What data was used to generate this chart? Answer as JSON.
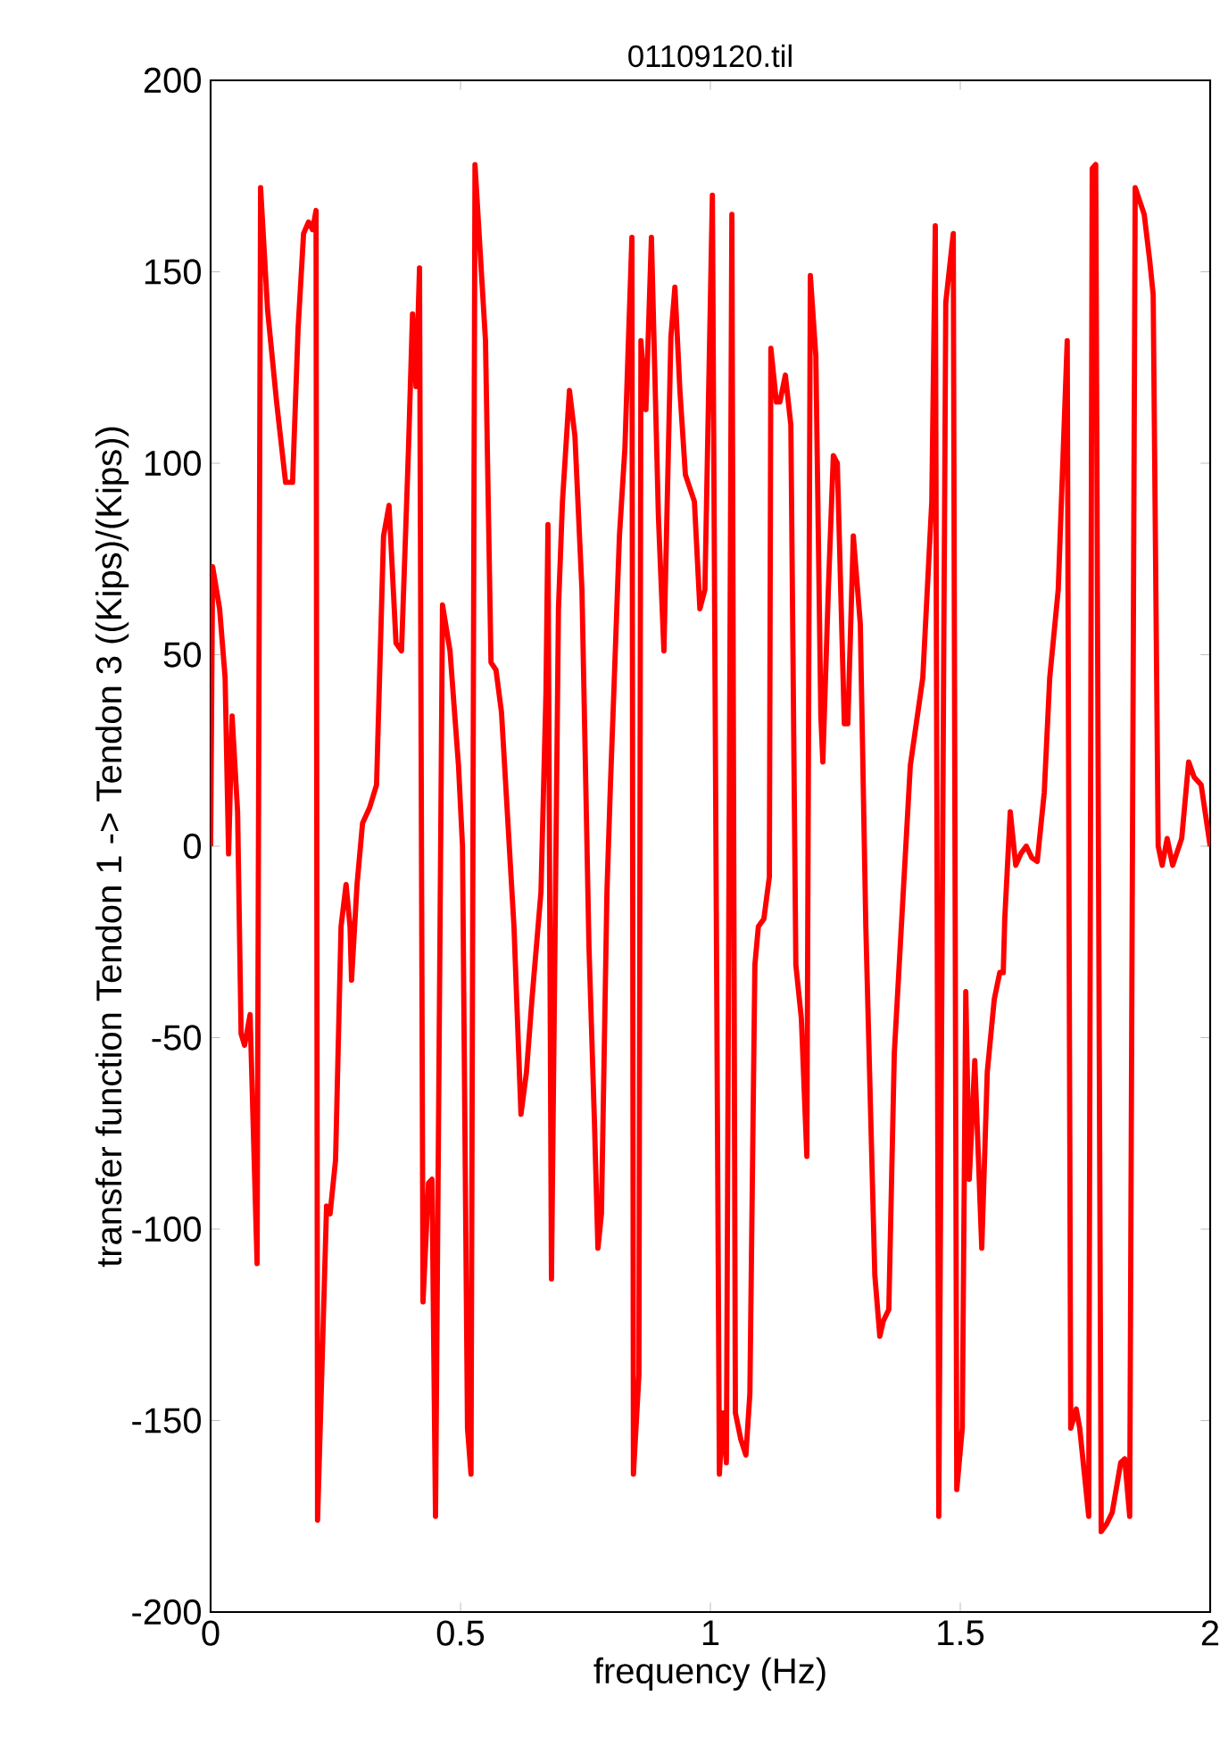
{
  "chart_data": {
    "type": "line",
    "title": "01109120.til",
    "xlabel": "frequency (Hz)",
    "ylabel": "transfer function Tendon 1 -> Tendon 3 ((Kips)/(Kips))",
    "xlim": [
      0,
      2
    ],
    "ylim": [
      -200,
      200
    ],
    "xticks": [
      0,
      0.5,
      1,
      1.5,
      2
    ],
    "yticks": [
      -200,
      -150,
      -100,
      -50,
      0,
      50,
      100,
      150,
      200
    ],
    "grid": false,
    "marker": "none",
    "line_style": "solid",
    "series": [
      {
        "color": "#ff0000",
        "x": [
          0,
          0.004,
          0.018,
          0.029,
          0.036,
          0.043,
          0.054,
          0.061,
          0.068,
          0.079,
          0.093,
          0.1,
          0.114,
          0.132,
          0.15,
          0.164,
          0.175,
          0.186,
          0.196,
          0.204,
          0.211,
          0.214,
          0.232,
          0.239,
          0.25,
          0.261,
          0.271,
          0.279,
          0.282,
          0.293,
          0.304,
          0.318,
          0.332,
          0.346,
          0.357,
          0.371,
          0.382,
          0.396,
          0.404,
          0.411,
          0.418,
          0.425,
          0.436,
          0.443,
          0.45,
          0.464,
          0.479,
          0.496,
          0.504,
          0.514,
          0.521,
          0.529,
          0.539,
          0.55,
          0.561,
          0.571,
          0.582,
          0.607,
          0.621,
          0.632,
          0.643,
          0.661,
          0.671,
          0.675,
          0.682,
          0.696,
          0.704,
          0.718,
          0.729,
          0.743,
          0.757,
          0.768,
          0.775,
          0.782,
          0.793,
          0.8,
          0.807,
          0.818,
          0.829,
          0.836,
          0.843,
          0.846,
          0.857,
          0.861,
          0.871,
          0.882,
          0.896,
          0.907,
          0.921,
          0.929,
          0.939,
          0.95,
          0.968,
          0.979,
          0.989,
          1.004,
          1.018,
          1.025,
          1.032,
          1.043,
          1.05,
          1.061,
          1.071,
          1.079,
          1.089,
          1.096,
          1.107,
          1.118,
          1.121,
          1.132,
          1.139,
          1.15,
          1.161,
          1.171,
          1.182,
          1.193,
          1.2,
          1.211,
          1.221,
          1.225,
          1.236,
          1.246,
          1.254,
          1.268,
          1.275,
          1.286,
          1.3,
          1.311,
          1.329,
          1.339,
          1.346,
          1.357,
          1.368,
          1.4,
          1.425,
          1.443,
          1.45,
          1.457,
          1.471,
          1.486,
          1.493,
          1.504,
          1.511,
          1.518,
          1.529,
          1.543,
          1.554,
          1.568,
          1.579,
          1.586,
          1.589,
          1.6,
          1.611,
          1.621,
          1.632,
          1.643,
          1.654,
          1.668,
          1.679,
          1.696,
          1.714,
          1.721,
          1.732,
          1.739,
          1.757,
          1.764,
          1.771,
          1.782,
          1.793,
          1.804,
          1.821,
          1.829,
          1.839,
          1.85,
          1.868,
          1.879,
          1.886,
          1.896,
          1.904,
          1.914,
          1.925,
          1.943,
          1.957,
          1.968,
          1.982,
          2
        ],
        "values": [
          0,
          73,
          62,
          44,
          -2,
          34,
          9,
          -49,
          -52,
          -44,
          -109,
          172,
          140,
          116,
          95,
          95,
          135,
          160,
          163,
          161,
          166,
          -176,
          -94,
          -96,
          -82,
          -21,
          -10,
          -21,
          -35,
          -10,
          6,
          10,
          16,
          81,
          89,
          53,
          51,
          104,
          139,
          120,
          151,
          -119,
          -88,
          -87,
          -175,
          63,
          51,
          21,
          0,
          -152,
          -164,
          178,
          156,
          132,
          48,
          46,
          35,
          -21,
          -70,
          -59,
          -40,
          -12,
          40,
          84,
          -113,
          62,
          90,
          119,
          107,
          67,
          -26,
          -72,
          -105,
          -96,
          -12,
          16,
          41,
          81,
          104,
          132,
          159,
          -164,
          -138,
          132,
          114,
          159,
          86,
          51,
          133,
          146,
          119,
          97,
          90,
          62,
          67,
          170,
          -164,
          -148,
          -161,
          165,
          -148,
          -155,
          -159,
          -143,
          -31,
          -21,
          -19,
          -8,
          130,
          116,
          116,
          123,
          110,
          -31,
          -45,
          -81,
          149,
          128,
          34,
          22,
          67,
          102,
          100,
          32,
          32,
          81,
          58,
          -21,
          -112,
          -128,
          -124,
          -121,
          -54,
          21,
          44,
          90,
          162,
          -175,
          142,
          160,
          -168,
          -152,
          -38,
          -87,
          -56,
          -105,
          -59,
          -40,
          -33,
          -33,
          -19,
          9,
          -5,
          -2,
          0,
          -3,
          -4,
          14,
          44,
          67,
          132,
          -152,
          -147,
          -152,
          -175,
          177,
          178,
          -179,
          -177,
          -174,
          -161,
          -160,
          -175,
          172,
          165,
          153,
          144,
          0,
          -5,
          2,
          -5,
          2,
          22,
          18,
          16,
          0
        ]
      }
    ]
  }
}
